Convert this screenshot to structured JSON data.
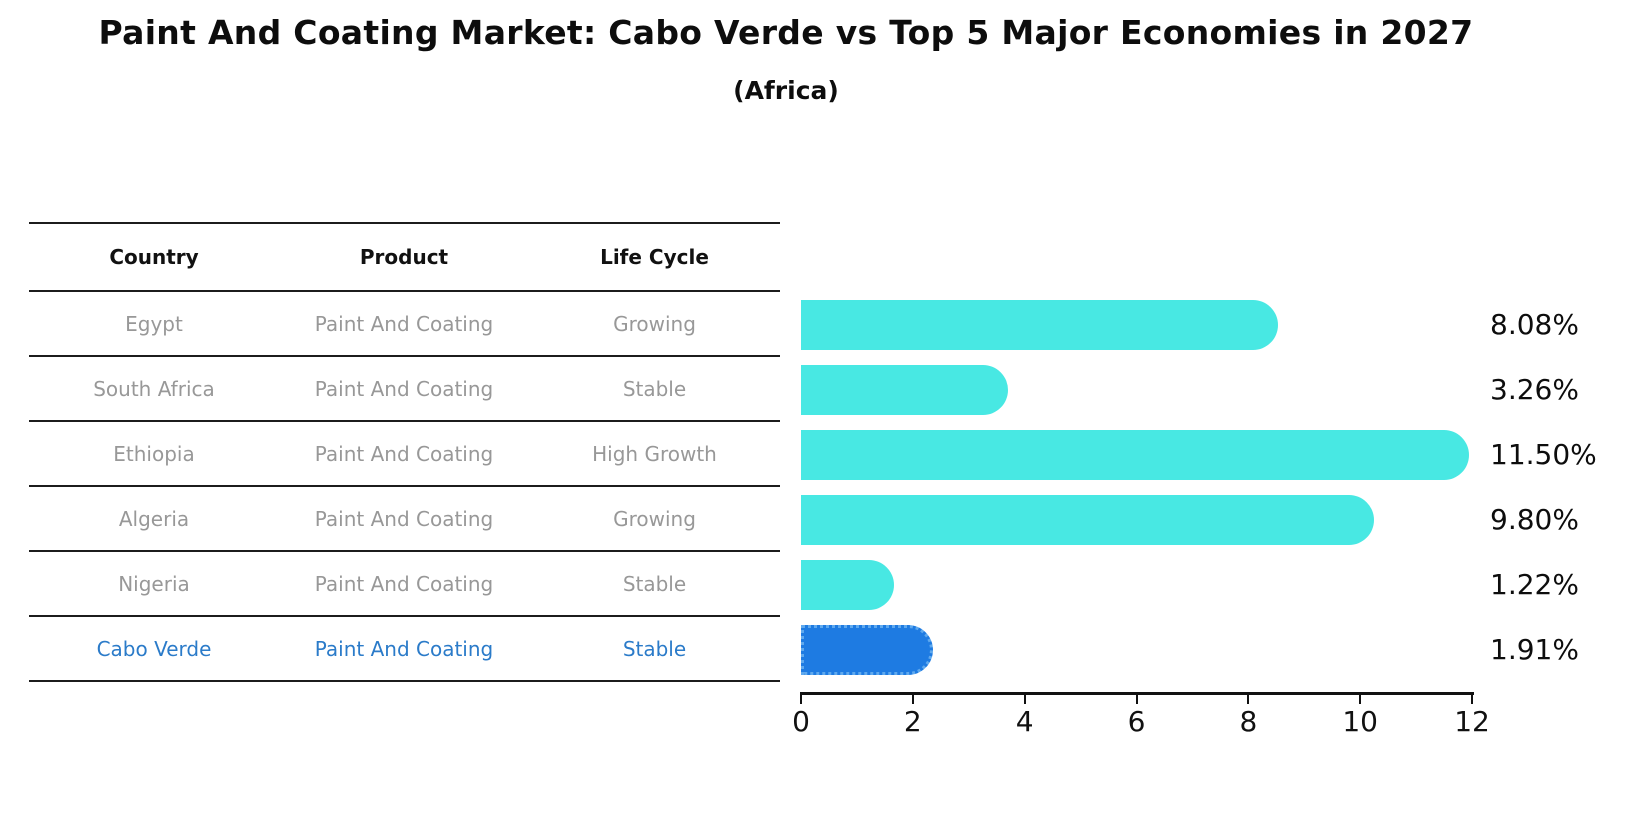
{
  "title": "Paint And Coating Market: Cabo Verde vs Top 5 Major Economies in 2027",
  "subtitle": "(Africa)",
  "table": {
    "columns": [
      "Country",
      "Product",
      "Life Cycle"
    ],
    "rows": [
      {
        "country": "Egypt",
        "product": "Paint And Coating",
        "life_cycle": "Growing"
      },
      {
        "country": "South Africa",
        "product": "Paint And Coating",
        "life_cycle": "Stable"
      },
      {
        "country": "Ethiopia",
        "product": "Paint And Coating",
        "life_cycle": "High Growth"
      },
      {
        "country": "Algeria",
        "product": "Paint And Coating",
        "life_cycle": "Growing"
      },
      {
        "country": "Nigeria",
        "product": "Paint And Coating",
        "life_cycle": "Stable"
      },
      {
        "country": "Cabo Verde",
        "product": "Paint And Coating",
        "life_cycle": "Stable"
      }
    ],
    "highlight_row": "Cabo Verde"
  },
  "chart_data": {
    "type": "bar",
    "orientation": "horizontal",
    "title": "Paint And Coating Market: Cabo Verde vs Top 5 Major Economies in 2027",
    "subtitle": "(Africa)",
    "categories": [
      "Egypt",
      "South Africa",
      "Ethiopia",
      "Algeria",
      "Nigeria",
      "Cabo Verde"
    ],
    "values": [
      8.08,
      3.26,
      11.5,
      9.8,
      1.22,
      1.91
    ],
    "value_labels": [
      "8.08%",
      "3.26%",
      "11.50%",
      "9.80%",
      "1.22%",
      "1.91%"
    ],
    "xlabel": "",
    "ylabel": "",
    "xlim": [
      0,
      12
    ],
    "x_ticks": [
      0,
      2,
      4,
      6,
      8,
      10,
      12
    ],
    "grid": false,
    "legend": false,
    "highlight_index": 5
  },
  "colors": {
    "background": "#ffffff",
    "bar": "#48e8e3",
    "highlight_bar": "#1e7be2",
    "highlight_bar_edge": "#5fa9ee",
    "row_text": "#989898",
    "header_text": "#111111",
    "highlight_text": "#2b7bc9",
    "line": "#1c1c1c",
    "axis_text": "#111111"
  }
}
